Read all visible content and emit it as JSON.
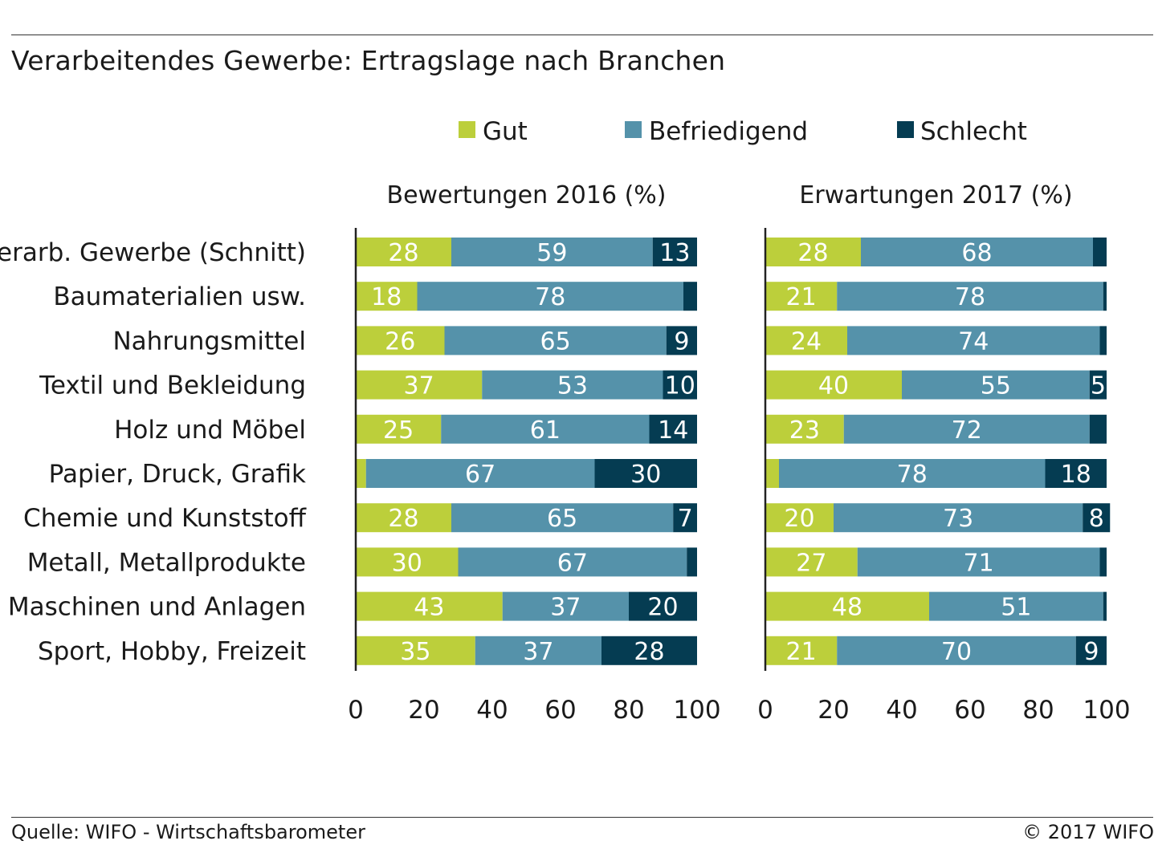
{
  "title": "Verarbeitendes Gewerbe: Ertragslage nach Branchen",
  "source": "Quelle: WIFO - Wirtschaftsbarometer",
  "copyright": "© 2017 WIFO",
  "colors": {
    "gut": "#bccf3b",
    "befriedigend": "#5592aa",
    "schlecht": "#053c52",
    "label": "#ffffff"
  },
  "chart_data": {
    "type": "bar",
    "orientation": "horizontal",
    "stacked": true,
    "title": "Verarbeitendes Gewerbe: Ertragslage nach Branchen",
    "legend": [
      "Gut",
      "Befriedigend",
      "Schlecht"
    ],
    "legend_position": "top",
    "categories": [
      "Verarb. Gewerbe (Schnitt)",
      "Baumaterialien usw.",
      "Nahrungsmittel",
      "Textil und Bekleidung",
      "Holz und Möbel",
      "Papier, Druck, Grafik",
      "Chemie und Kunststoff",
      "Metall, Metallprodukte",
      "Maschinen und Anlagen",
      "Sport, Hobby, Freizeit"
    ],
    "xlim": [
      0,
      100
    ],
    "xticks": [
      "0",
      "20",
      "40",
      "60",
      "80",
      "100"
    ],
    "panels": [
      {
        "title": "Bewertungen 2016 (%)",
        "series": [
          {
            "name": "Gut",
            "values": [
              28,
              18,
              26,
              37,
              25,
              3,
              28,
              30,
              43,
              35
            ],
            "labels": [
              "28",
              "18",
              "26",
              "37",
              "25",
              "",
              "28",
              "30",
              "43",
              "35"
            ]
          },
          {
            "name": "Befriedigend",
            "values": [
              59,
              78,
              65,
              53,
              61,
              67,
              65,
              67,
              37,
              37
            ],
            "labels": [
              "59",
              "78",
              "65",
              "53",
              "61",
              "67",
              "65",
              "67",
              "37",
              "37"
            ]
          },
          {
            "name": "Schlecht",
            "values": [
              13,
              4,
              9,
              10,
              14,
              30,
              7,
              3,
              20,
              28
            ],
            "labels": [
              "13",
              "",
              "9",
              "10",
              "14",
              "30",
              "7",
              "",
              "20",
              "28"
            ]
          }
        ]
      },
      {
        "title": "Erwartungen 2017 (%)",
        "series": [
          {
            "name": "Gut",
            "values": [
              28,
              21,
              24,
              40,
              23,
              4,
              20,
              27,
              48,
              21
            ],
            "labels": [
              "28",
              "21",
              "24",
              "40",
              "23",
              "",
              "20",
              "27",
              "48",
              "21"
            ]
          },
          {
            "name": "Befriedigend",
            "values": [
              68,
              78,
              74,
              55,
              72,
              78,
              73,
              71,
              51,
              70
            ],
            "labels": [
              "68",
              "78",
              "74",
              "55",
              "72",
              "78",
              "73",
              "71",
              "51",
              "70"
            ]
          },
          {
            "name": "Schlecht",
            "values": [
              4,
              1,
              2,
              5,
              5,
              18,
              8,
              2,
              1,
              9
            ],
            "labels": [
              "",
              "",
              "",
              "5",
              "",
              "18",
              "8",
              "",
              "",
              "9"
            ]
          }
        ]
      }
    ]
  }
}
